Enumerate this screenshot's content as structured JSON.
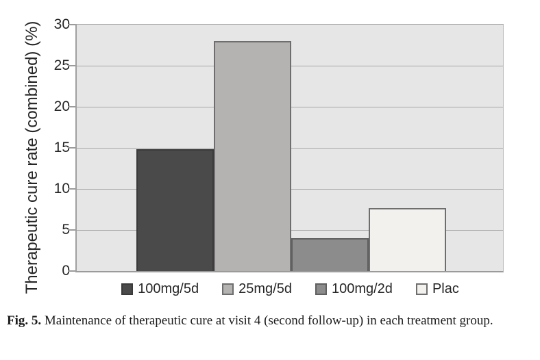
{
  "chart_data": {
    "type": "bar",
    "title": "",
    "categories": [
      "100mg/5d",
      "25mg/5d",
      "100mg/2d",
      "Plac"
    ],
    "values": [
      14.8,
      28,
      4,
      7.7
    ],
    "xlabel": "",
    "ylabel": "Therapeutic cure rate (combined) (%)",
    "ylim": [
      0,
      30
    ],
    "yticks": [
      0,
      5,
      10,
      15,
      20,
      25,
      30
    ],
    "grid": "horizontal",
    "legend_position": "bottom",
    "plot_bg_color": "#e7e6e6",
    "gridline_color": "#a6a6a6",
    "axis_color": "#9b9b9b",
    "text_color": "#262626",
    "bar_styles": [
      {
        "fill": "#4a4a4a",
        "border": "#3a3a3a"
      },
      {
        "fill": "#b4b3b1",
        "border": "#6e6e6e"
      },
      {
        "fill": "#8c8c8c",
        "border": "#5f5f5f"
      },
      {
        "fill": "#f2f1ee",
        "border": "#6e6e6e"
      }
    ]
  },
  "caption": {
    "label": "Fig. 5.",
    "text": "Maintenance of therapeutic cure at visit 4 (second follow-up) in each treatment group."
  }
}
